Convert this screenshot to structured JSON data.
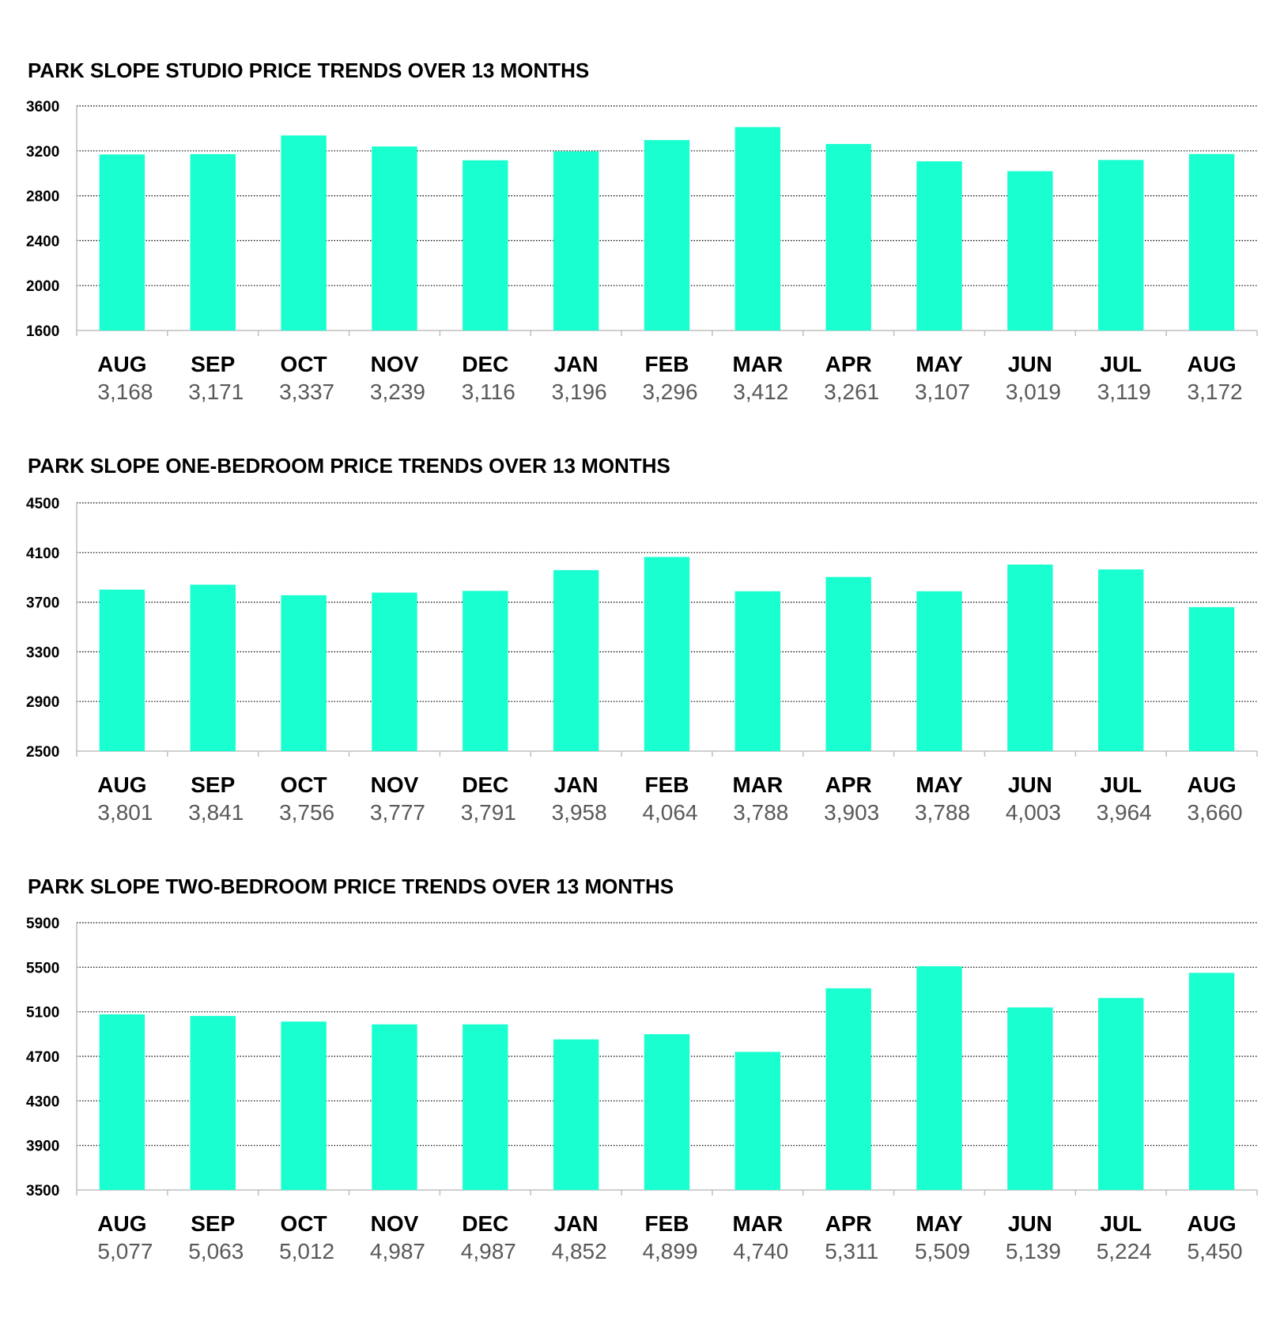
{
  "colors": {
    "bar": "#1AFFCF",
    "grid": "#000000",
    "axis": "#BFBFBF",
    "value_label": "#595959"
  },
  "chart_data": [
    {
      "type": "bar",
      "title": "PARK SLOPE STUDIO PRICE TRENDS OVER 13 MONTHS",
      "categories": [
        "AUG",
        "SEP",
        "OCT",
        "NOV",
        "DEC",
        "JAN",
        "FEB",
        "MAR",
        "APR",
        "MAY",
        "JUN",
        "JUL",
        "AUG"
      ],
      "values": [
        3168,
        3171,
        3337,
        3239,
        3116,
        3196,
        3296,
        3412,
        3261,
        3107,
        3019,
        3119,
        3172
      ],
      "value_labels": [
        "3,168",
        "3,171",
        "3,337",
        "3,239",
        "3,116",
        "3,196",
        "3,296",
        "3,412",
        "3,261",
        "3,107",
        "3,019",
        "3,119",
        "3,172"
      ],
      "yticks": [
        "3600",
        "3200",
        "2800",
        "2400",
        "2000",
        "1600"
      ],
      "ylim": [
        1600,
        3600
      ],
      "grid": true
    },
    {
      "type": "bar",
      "title": "PARK SLOPE ONE-BEDROOM PRICE TRENDS OVER 13 MONTHS",
      "categories": [
        "AUG",
        "SEP",
        "OCT",
        "NOV",
        "DEC",
        "JAN",
        "FEB",
        "MAR",
        "APR",
        "MAY",
        "JUN",
        "JUL",
        "AUG"
      ],
      "values": [
        3801,
        3841,
        3756,
        3777,
        3791,
        3958,
        4064,
        3788,
        3903,
        3788,
        4003,
        3964,
        3660
      ],
      "value_labels": [
        "3,801",
        "3,841",
        "3,756",
        "3,777",
        "3,791",
        "3,958",
        "4,064",
        "3,788",
        "3,903",
        "3,788",
        "4,003",
        "3,964",
        "3,660"
      ],
      "yticks": [
        "4500",
        "4100",
        "3700",
        "3300",
        "2900",
        "2500"
      ],
      "ylim": [
        2500,
        4500
      ],
      "grid": true
    },
    {
      "type": "bar",
      "title": "PARK SLOPE TWO-BEDROOM PRICE TRENDS OVER 13 MONTHS",
      "categories": [
        "AUG",
        "SEP",
        "OCT",
        "NOV",
        "DEC",
        "JAN",
        "FEB",
        "MAR",
        "APR",
        "MAY",
        "JUN",
        "JUL",
        "AUG"
      ],
      "values": [
        5077,
        5063,
        5012,
        4987,
        4987,
        4852,
        4899,
        4740,
        5311,
        5509,
        5139,
        5224,
        5450
      ],
      "value_labels": [
        "5,077",
        "5,063",
        "5,012",
        "4,987",
        "4,987",
        "4,852",
        "4,899",
        "4,740",
        "5,311",
        "5,509",
        "5,139",
        "5,224",
        "5,450"
      ],
      "yticks": [
        "5900",
        "5500",
        "5100",
        "4700",
        "4300",
        "3900",
        "3500"
      ],
      "ylim": [
        3500,
        5900
      ],
      "grid": true
    }
  ]
}
